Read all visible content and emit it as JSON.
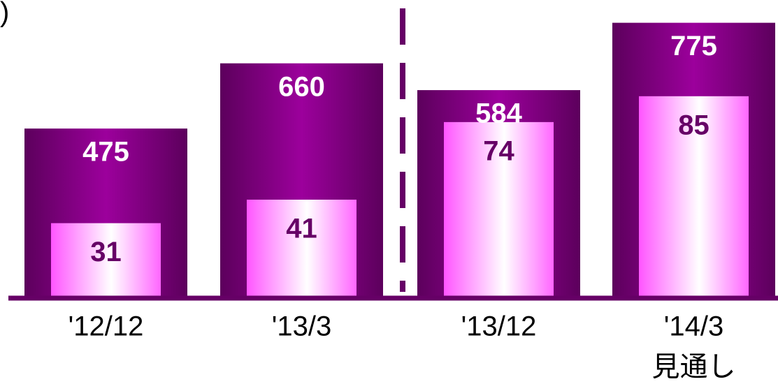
{
  "chart_data": {
    "type": "bar",
    "unit_label": ")",
    "categories": [
      "'12/12",
      "'13/3",
      "'13/12",
      "'14/3"
    ],
    "sub_label": "見通し",
    "series": [
      {
        "color": "#800080",
        "values": [
          475,
          660,
          584,
          775
        ]
      },
      {
        "color": "#ff66ff",
        "axis": "y2",
        "values": [
          31,
          41,
          74,
          85
        ]
      }
    ],
    "ylim": [
      0,
      800
    ],
    "y2lim": [
      0,
      120
    ]
  }
}
